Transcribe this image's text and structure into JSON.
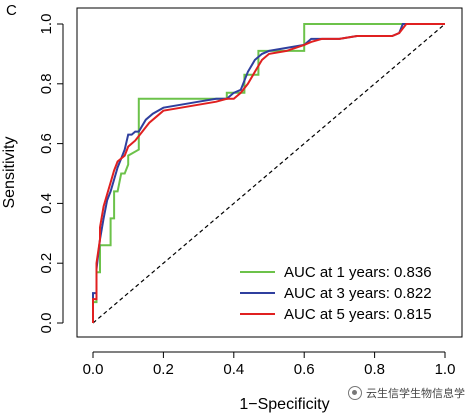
{
  "panel_label": "C",
  "watermark": {
    "text": "云生信学生物信息学",
    "icon": "wechat-icon"
  },
  "chart_data": {
    "type": "line",
    "xlabel": "1−Specificity",
    "ylabel": "Sensitivity",
    "xlim": [
      0,
      1
    ],
    "ylim": [
      0,
      1
    ],
    "xticks": [
      "0.0",
      "0.2",
      "0.4",
      "0.6",
      "0.8",
      "1.0"
    ],
    "yticks": [
      "0.0",
      "0.2",
      "0.4",
      "0.6",
      "0.8",
      "1.0"
    ],
    "grid": false,
    "legend_position": "bottom-right",
    "reference_line": {
      "style": "dashed",
      "from": [
        0,
        0
      ],
      "to": [
        1,
        1
      ]
    },
    "series": [
      {
        "name": "AUC at 1 years: 0.836",
        "color": "#6cc24a",
        "x": [
          0.0,
          0.0,
          0.01,
          0.01,
          0.02,
          0.02,
          0.03,
          0.04,
          0.05,
          0.05,
          0.06,
          0.06,
          0.07,
          0.08,
          0.09,
          0.1,
          0.1,
          0.13,
          0.13,
          0.13,
          0.38,
          0.38,
          0.4,
          0.43,
          0.43,
          0.47,
          0.47,
          0.6,
          0.6,
          0.88,
          0.88,
          1.0
        ],
        "y": [
          0.0,
          0.07,
          0.07,
          0.17,
          0.17,
          0.26,
          0.26,
          0.26,
          0.26,
          0.35,
          0.35,
          0.44,
          0.44,
          0.5,
          0.5,
          0.53,
          0.56,
          0.58,
          0.67,
          0.75,
          0.75,
          0.77,
          0.77,
          0.77,
          0.83,
          0.83,
          0.91,
          0.91,
          1.0,
          1.0,
          1.0,
          1.0
        ]
      },
      {
        "name": "AUC at 3 years: 0.822",
        "color": "#2f3f9e",
        "x": [
          0.0,
          0.0,
          0.01,
          0.01,
          0.02,
          0.03,
          0.04,
          0.05,
          0.06,
          0.07,
          0.08,
          0.09,
          0.1,
          0.11,
          0.12,
          0.13,
          0.15,
          0.17,
          0.2,
          0.25,
          0.3,
          0.35,
          0.38,
          0.4,
          0.42,
          0.44,
          0.46,
          0.48,
          0.5,
          0.55,
          0.6,
          0.62,
          0.65,
          0.7,
          0.75,
          0.8,
          0.85,
          0.87,
          0.88,
          1.0
        ],
        "y": [
          0.0,
          0.1,
          0.1,
          0.18,
          0.28,
          0.35,
          0.41,
          0.44,
          0.48,
          0.52,
          0.55,
          0.58,
          0.63,
          0.63,
          0.64,
          0.64,
          0.68,
          0.7,
          0.72,
          0.73,
          0.74,
          0.75,
          0.75,
          0.77,
          0.78,
          0.84,
          0.88,
          0.9,
          0.91,
          0.92,
          0.93,
          0.95,
          0.95,
          0.95,
          0.96,
          0.96,
          0.96,
          0.97,
          1.0,
          1.0
        ]
      },
      {
        "name": "AUC at 5 years: 0.815",
        "color": "#e02020",
        "x": [
          0.0,
          0.0,
          0.01,
          0.01,
          0.02,
          0.02,
          0.03,
          0.04,
          0.05,
          0.06,
          0.07,
          0.08,
          0.09,
          0.1,
          0.12,
          0.14,
          0.16,
          0.18,
          0.2,
          0.25,
          0.3,
          0.35,
          0.38,
          0.4,
          0.42,
          0.44,
          0.46,
          0.48,
          0.5,
          0.55,
          0.6,
          0.62,
          0.65,
          0.7,
          0.75,
          0.8,
          0.85,
          0.87,
          0.89,
          1.0
        ],
        "y": [
          0.0,
          0.08,
          0.08,
          0.2,
          0.28,
          0.32,
          0.39,
          0.43,
          0.47,
          0.51,
          0.54,
          0.55,
          0.56,
          0.59,
          0.61,
          0.64,
          0.67,
          0.69,
          0.71,
          0.72,
          0.73,
          0.74,
          0.75,
          0.75,
          0.77,
          0.8,
          0.84,
          0.88,
          0.9,
          0.91,
          0.93,
          0.94,
          0.95,
          0.95,
          0.96,
          0.96,
          0.96,
          0.97,
          1.0,
          1.0
        ]
      }
    ]
  }
}
